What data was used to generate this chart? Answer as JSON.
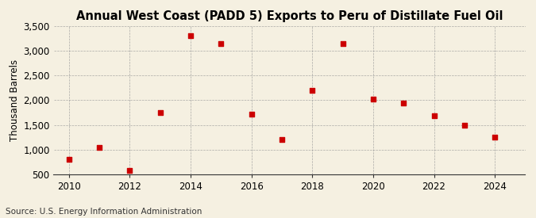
{
  "title": "Annual West Coast (PADD 5) Exports to Peru of Distillate Fuel Oil",
  "ylabel": "Thousand Barrels",
  "source": "Source: U.S. Energy Information Administration",
  "years": [
    2010,
    2011,
    2012,
    2013,
    2014,
    2015,
    2016,
    2017,
    2018,
    2019,
    2020,
    2021,
    2022,
    2023,
    2024
  ],
  "values": [
    800,
    1050,
    580,
    1750,
    3300,
    3150,
    1720,
    1200,
    2200,
    3150,
    2020,
    1950,
    1680,
    1500,
    1250
  ],
  "marker_color": "#cc0000",
  "marker": "s",
  "marker_size": 4,
  "background_color": "#f5f0e1",
  "grid_color": "#999999",
  "ylim": [
    500,
    3500
  ],
  "yticks": [
    500,
    1000,
    1500,
    2000,
    2500,
    3000,
    3500
  ],
  "xlim": [
    2009.5,
    2025.0
  ],
  "xticks": [
    2010,
    2012,
    2014,
    2016,
    2018,
    2020,
    2022,
    2024
  ],
  "title_fontsize": 10.5,
  "label_fontsize": 8.5,
  "tick_fontsize": 8.5,
  "source_fontsize": 7.5
}
